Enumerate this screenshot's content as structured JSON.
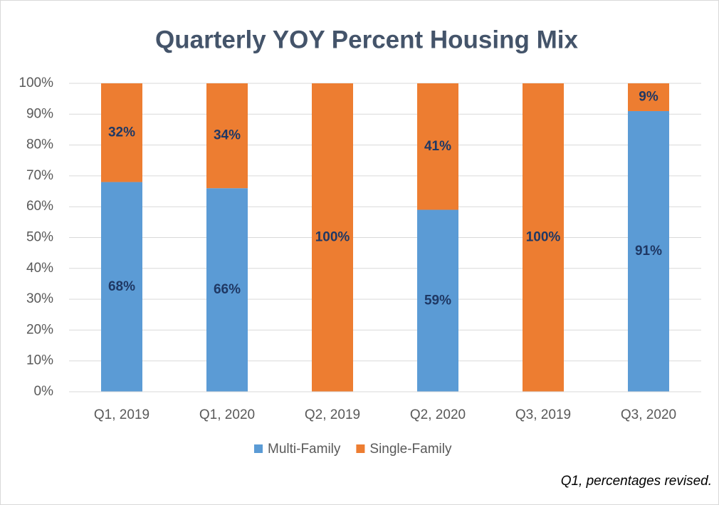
{
  "chart_data": {
    "type": "stacked_bar",
    "title": "Quarterly YOY Percent Housing Mix",
    "categories": [
      "Q1, 2019",
      "Q1, 2020",
      "Q2, 2019",
      "Q2, 2020",
      "Q3, 2019",
      "Q3, 2020"
    ],
    "series": [
      {
        "name": "Multi-Family",
        "color": "#5b9bd5",
        "values": [
          68,
          66,
          0,
          59,
          0,
          91
        ],
        "value_labels": [
          "68%",
          "66%",
          null,
          "59%",
          null,
          "91%"
        ]
      },
      {
        "name": "Single-Family",
        "color": "#ed7d31",
        "values": [
          32,
          34,
          100,
          41,
          100,
          9
        ],
        "value_labels": [
          "32%",
          "34%",
          "100%",
          "41%",
          "100%",
          "9%"
        ]
      }
    ],
    "ylim": [
      0,
      100
    ],
    "yticks": [
      {
        "value": 0,
        "label": "0%"
      },
      {
        "value": 10,
        "label": "10%"
      },
      {
        "value": 20,
        "label": "20%"
      },
      {
        "value": 30,
        "label": "30%"
      },
      {
        "value": 40,
        "label": "40%"
      },
      {
        "value": 50,
        "label": "50%"
      },
      {
        "value": 60,
        "label": "60%"
      },
      {
        "value": 70,
        "label": "70%"
      },
      {
        "value": 80,
        "label": "80%"
      },
      {
        "value": 90,
        "label": "90%"
      },
      {
        "value": 100,
        "label": "100%"
      }
    ],
    "grid": true,
    "legend": "bottom",
    "annotation": "Q1, percentages revised."
  }
}
